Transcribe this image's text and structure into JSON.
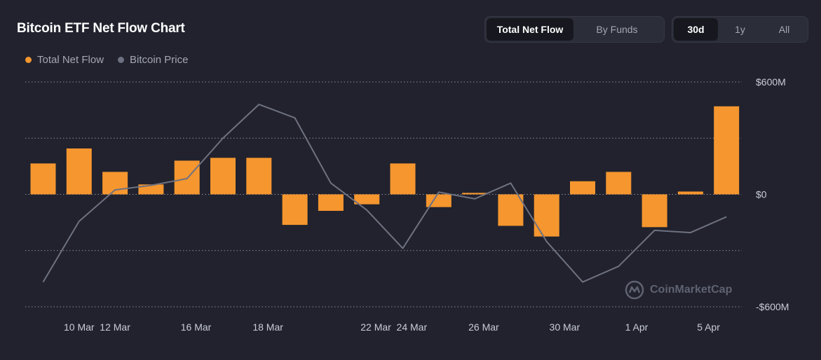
{
  "title": "Bitcoin ETF Net Flow Chart",
  "view_tabs": [
    {
      "label": "Total Net Flow",
      "active": true
    },
    {
      "label": "By Funds",
      "active": false
    }
  ],
  "range_tabs": [
    {
      "label": "30d",
      "active": true
    },
    {
      "label": "1y",
      "active": false
    },
    {
      "label": "All",
      "active": false
    }
  ],
  "watermark": "CoinMarketCap",
  "colors": {
    "flow": "#f5962f",
    "price": "#6e7181",
    "grid": "#8b8e9b"
  },
  "chart_data": {
    "type": "bar",
    "title": "Bitcoin ETF Net Flow Chart",
    "legend": [
      "Total Net Flow",
      "Bitcoin Price"
    ],
    "legend_position": "top-left",
    "y_ticks": [
      "$600M",
      "$0",
      "-$600M"
    ],
    "y_tick_values": [
      600,
      0,
      -600
    ],
    "ylim": [
      -600,
      600
    ],
    "y_unit": "M USD",
    "grid": true,
    "x_tick_labels": [
      "10 Mar",
      "12 Mar",
      "16 Mar",
      "18 Mar",
      "22 Mar",
      "24 Mar",
      "26 Mar",
      "30 Mar",
      "1 Apr",
      "5 Apr"
    ],
    "x_tick_bar_index": [
      1,
      2,
      4.25,
      6.25,
      9.25,
      10.25,
      12.25,
      14.5,
      16.5,
      18.5
    ],
    "series": [
      {
        "name": "Total Net Flow",
        "type": "bar",
        "values": [
          165,
          245,
          120,
          53,
          180,
          195,
          195,
          -163,
          -88,
          -53,
          165,
          -68,
          8,
          -168,
          -225,
          70,
          120,
          -175,
          15,
          470
        ]
      },
      {
        "name": "Bitcoin Price",
        "type": "line",
        "relative_values": [
          0.11,
          0.38,
          0.52,
          0.54,
          0.57,
          0.75,
          0.9,
          0.84,
          0.55,
          0.43,
          0.26,
          0.51,
          0.48,
          0.55,
          0.29,
          0.11,
          0.18,
          0.34,
          0.33,
          0.4
        ]
      }
    ]
  }
}
